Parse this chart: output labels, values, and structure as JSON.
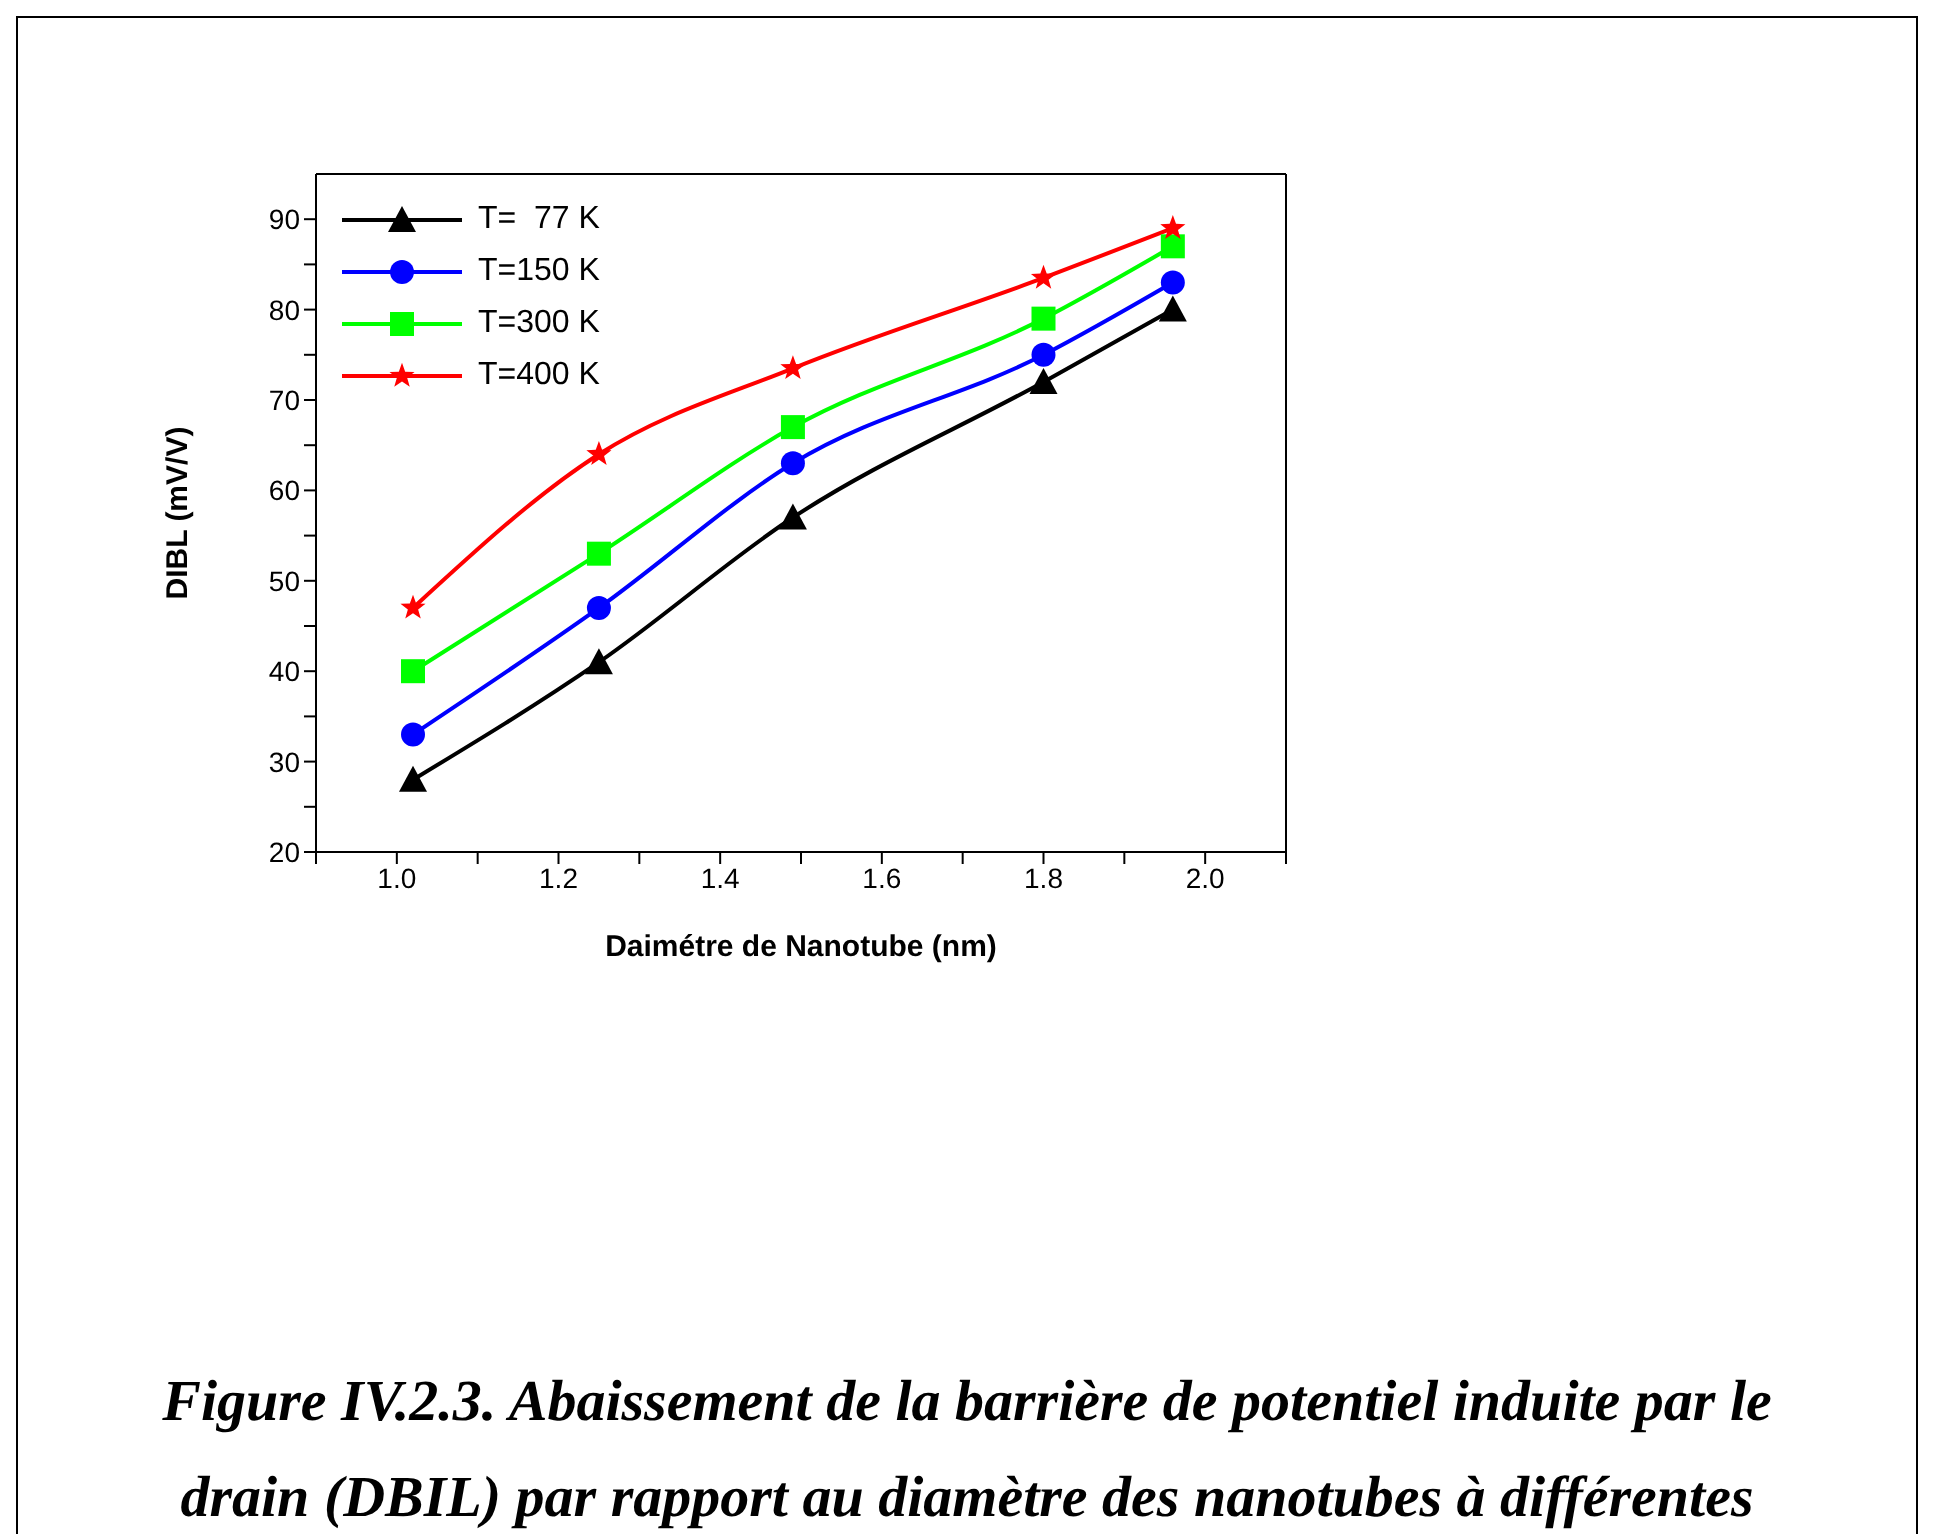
{
  "chart_data": {
    "type": "line",
    "xlabel": "Daimétre de Nanotube (nm)",
    "ylabel": "DIBL (mV/V)",
    "x": [
      1.02,
      1.25,
      1.49,
      1.8,
      1.96
    ],
    "series": [
      {
        "name": "T=  77 K",
        "color": "#000000",
        "marker": "triangle",
        "values": [
          28,
          41,
          57,
          72,
          80
        ]
      },
      {
        "name": "T=150 K",
        "color": "#0000ff",
        "marker": "circle",
        "values": [
          33,
          47,
          63,
          75,
          83
        ]
      },
      {
        "name": "T=300 K",
        "color": "#00ff00",
        "marker": "square",
        "values": [
          40,
          53,
          67,
          79,
          87
        ]
      },
      {
        "name": "T=400 K",
        "color": "#ff0000",
        "marker": "star",
        "values": [
          47,
          64,
          73.5,
          83.5,
          89
        ]
      }
    ],
    "xlim": [
      0.9,
      2.1
    ],
    "xticks": [
      {
        "value": 0.9,
        "label": null
      },
      {
        "value": 1.0,
        "label": "1.0"
      },
      {
        "value": 1.1,
        "label": null
      },
      1.2,
      {
        "value": 1.3,
        "label": null
      },
      1.4,
      {
        "value": 1.5,
        "label": null
      },
      1.6,
      {
        "value": 1.7,
        "label": null
      },
      1.8,
      {
        "value": 1.9,
        "label": null
      },
      {
        "value": 2.0,
        "label": "2.0"
      },
      {
        "value": 2.1,
        "label": null
      }
    ],
    "ylim": [
      20,
      95
    ],
    "yticks": [
      20,
      {
        "value": 25,
        "label": null
      },
      30,
      {
        "value": 35,
        "label": null
      },
      40,
      {
        "value": 45,
        "label": null
      },
      50,
      {
        "value": 55,
        "label": null
      },
      60,
      {
        "value": 65,
        "label": null
      },
      70,
      {
        "value": 75,
        "label": null
      },
      80,
      {
        "value": 85,
        "label": null
      },
      90
    ],
    "legend": "top left",
    "grid": false,
    "line_style": "solid",
    "annotations": [
      "Figure IV.2.3. Abaissement de la barrière de potentiel induite par le drain (DBIL) par rapport au diamètre des nanotubes à différentes"
    ]
  }
}
